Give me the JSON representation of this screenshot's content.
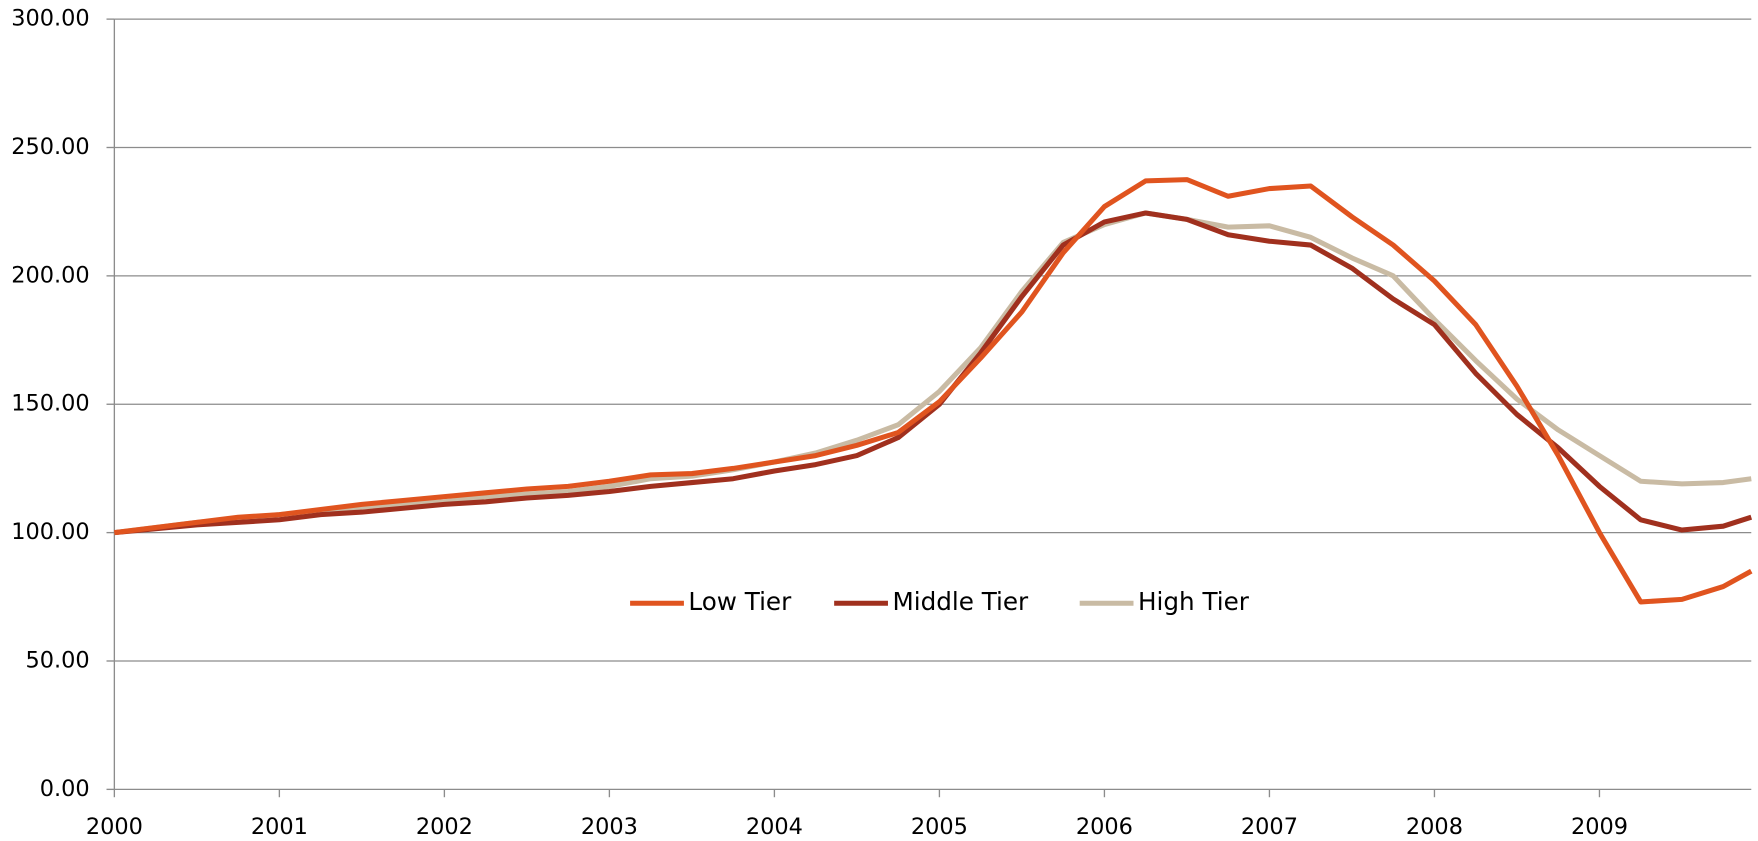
{
  "chart_data": {
    "type": "line",
    "x": [
      2000,
      2000.25,
      2000.5,
      2000.75,
      2001,
      2001.25,
      2001.5,
      2001.75,
      2002,
      2002.25,
      2002.5,
      2002.75,
      2003,
      2003.25,
      2003.5,
      2003.75,
      2004,
      2004.25,
      2004.5,
      2004.75,
      2005,
      2005.25,
      2005.5,
      2005.75,
      2006,
      2006.25,
      2006.5,
      2006.75,
      2007,
      2007.25,
      2007.5,
      2007.75,
      2008,
      2008.25,
      2008.5,
      2008.75,
      2009,
      2009.25,
      2009.5,
      2009.75,
      2009.92
    ],
    "series": [
      {
        "name": "Low Tier",
        "color": "#e0541f",
        "values": [
          100,
          102,
          104,
          106,
          107,
          109,
          111,
          112.5,
          114,
          115.5,
          117,
          118,
          120,
          122.5,
          123,
          125,
          127.5,
          130,
          134,
          139,
          151,
          168,
          186,
          209,
          227,
          237,
          237.5,
          231,
          234,
          235,
          223,
          212,
          198,
          181,
          157,
          130,
          100,
          73,
          74,
          79,
          85
        ]
      },
      {
        "name": "Middle Tier",
        "color": "#a0301e",
        "values": [
          100,
          101.5,
          103,
          104,
          105,
          107,
          108,
          109.5,
          111,
          112,
          113.5,
          114.5,
          116,
          118,
          119.5,
          121,
          124,
          126.5,
          130,
          137,
          150,
          170,
          192,
          212,
          221,
          224.5,
          222,
          216,
          213.5,
          212,
          203,
          191,
          181,
          162,
          146,
          133,
          118,
          105,
          101,
          102.5,
          106
        ]
      },
      {
        "name": "High Tier",
        "color": "#c9bba4",
        "values": [
          100,
          102,
          104,
          105.5,
          107,
          108.5,
          110,
          111,
          112,
          114,
          115,
          116,
          118,
          121,
          122,
          124.5,
          127.5,
          131,
          136,
          142,
          155,
          172,
          194,
          213,
          220,
          224.5,
          222,
          219,
          219.5,
          215,
          207,
          200,
          183,
          167,
          152,
          140,
          130,
          120,
          119,
          119.5,
          121
        ]
      }
    ],
    "xlim": [
      2000,
      2009.92
    ],
    "xticks": [
      2000,
      2001,
      2002,
      2003,
      2004,
      2005,
      2006,
      2007,
      2008,
      2009
    ],
    "ylim": [
      0,
      300
    ],
    "yticks": [
      {
        "value": 0,
        "label": "0.00"
      },
      {
        "value": 50,
        "label": "50.00"
      },
      {
        "value": 100,
        "label": "100.00"
      },
      {
        "value": 150,
        "label": "150.00"
      },
      {
        "value": 200,
        "label": "200.00"
      },
      {
        "value": 250,
        "label": "250.00"
      },
      {
        "value": 300,
        "label": "300.00"
      }
    ],
    "grid": true,
    "legend": "center"
  }
}
